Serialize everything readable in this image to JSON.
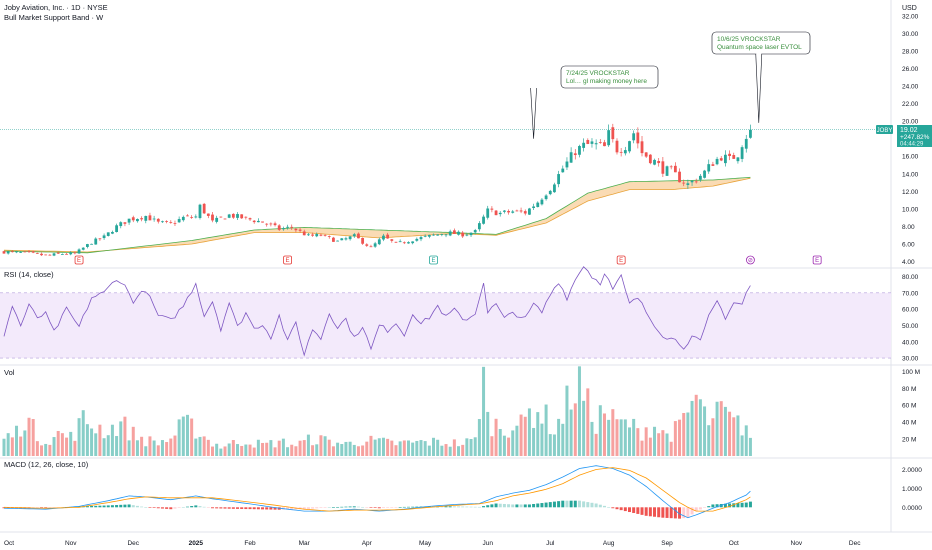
{
  "header": {
    "title": "Joby Aviation, Inc. · 1D · NYSE",
    "indicator": "Bull Market Support Band · W",
    "currency": "USD"
  },
  "price_tag": {
    "symbol": "JOBY",
    "price": "19.02",
    "change": "+247.82%",
    "countdown": "04:44:29"
  },
  "annotations": [
    {
      "line1": "7/24/25 VROCKSTAR",
      "line2": "Lol… gl making money here",
      "x": 127,
      "y": 18.0
    },
    {
      "line1": "10/6/25 VROCKSTAR",
      "line2": "Quantum space laser EVTOL",
      "x": 181,
      "y": 19.8
    }
  ],
  "panes": {
    "rsi": {
      "label": "RSI (14, close)"
    },
    "vol": {
      "label": "Vol"
    },
    "macd": {
      "label": "MACD (12, 26, close, 10)"
    }
  },
  "events": [
    {
      "letter": "E",
      "x": 18,
      "kind": "earnings"
    },
    {
      "letter": "E",
      "x": 68,
      "kind": "earnings"
    },
    {
      "letter": "E",
      "x": 103,
      "kind": "earnings"
    },
    {
      "letter": "E",
      "x": 148,
      "kind": "earnings"
    },
    {
      "letter": "⊘",
      "x": 179,
      "kind": "event"
    },
    {
      "letter": "E",
      "x": 195,
      "kind": "earnings-future"
    }
  ],
  "colors": {
    "up": "#26a69a",
    "down": "#ef5350",
    "band_fill": "#f9d5a7",
    "band_line_slow": "#e8a33a",
    "band_line_fast": "#4caf50",
    "rsi_line": "#7e57c2",
    "rsi_band": "#f3eafb",
    "macd_line": "#2196f3",
    "signal_line": "#ff9800",
    "price_line": "#26a69a",
    "event_earnings": "#e53935",
    "event_green": "#26a69a",
    "event_purple": "#9c27b0"
  },
  "chart_data": {
    "type": "candlestick",
    "x_axis": {
      "labels": [
        "Oct",
        "Nov",
        "Dec",
        "2025",
        "Feb",
        "Mar",
        "Apr",
        "May",
        "Jun",
        "Jul",
        "Aug",
        "Sep",
        "Oct",
        "Nov",
        "Dec"
      ],
      "label_x": [
        0,
        16,
        31,
        46,
        59,
        72,
        87,
        101,
        116,
        131,
        145,
        159,
        175,
        190,
        204
      ]
    },
    "price_axis": {
      "ticks": [
        4,
        6,
        8,
        10,
        12,
        14,
        16,
        18,
        20,
        22,
        24,
        26,
        28,
        30,
        32
      ],
      "range": [
        3.5,
        32.2
      ]
    },
    "rsi_axis": {
      "ticks": [
        30,
        40,
        50,
        60,
        70,
        80
      ],
      "range": [
        27,
        84
      ],
      "band": [
        30,
        70
      ]
    },
    "vol_axis": {
      "ticks": [
        "20 M",
        "40 M",
        "60 M",
        "80 M",
        "100 M"
      ],
      "tick_values": [
        20,
        40,
        60,
        80,
        100
      ],
      "range": [
        0,
        104
      ]
    },
    "macd_axis": {
      "ticks": [
        "0.0000",
        "1.0000",
        "2.0000"
      ],
      "tick_values": [
        0,
        1,
        2
      ],
      "range": [
        -1.2,
        2.5
      ]
    },
    "anchors": {
      "close": [
        [
          0,
          5.1
        ],
        [
          5,
          5.0
        ],
        [
          10,
          4.7
        ],
        [
          14,
          4.9
        ],
        [
          17,
          4.9
        ],
        [
          21,
          6.2
        ],
        [
          24,
          6.8
        ],
        [
          27,
          8.0
        ],
        [
          30,
          8.8
        ],
        [
          34,
          9.2
        ],
        [
          37,
          8.4
        ],
        [
          40,
          8.3
        ],
        [
          43,
          9.0
        ],
        [
          46,
          9.1
        ],
        [
          47,
          10.3
        ],
        [
          50,
          8.5
        ],
        [
          54,
          9.3
        ],
        [
          58,
          8.9
        ],
        [
          62,
          8.5
        ],
        [
          66,
          7.7
        ],
        [
          69,
          7.9
        ],
        [
          73,
          6.9
        ],
        [
          76,
          7.0
        ],
        [
          80,
          6.3
        ],
        [
          84,
          6.9
        ],
        [
          87,
          5.9
        ],
        [
          88,
          5.6
        ],
        [
          91,
          6.8
        ],
        [
          94,
          6.0
        ],
        [
          98,
          6.5
        ],
        [
          102,
          6.9
        ],
        [
          106,
          7.3
        ],
        [
          110,
          7.1
        ],
        [
          113,
          7.4
        ],
        [
          116,
          9.8
        ],
        [
          119,
          9.5
        ],
        [
          122,
          9.7
        ],
        [
          125,
          9.6
        ],
        [
          128,
          10.8
        ],
        [
          131,
          12.4
        ],
        [
          134,
          14.6
        ],
        [
          137,
          16.6
        ],
        [
          139,
          17.2
        ],
        [
          141,
          17.4
        ],
        [
          144,
          17.0
        ],
        [
          145,
          18.5
        ],
        [
          147,
          16.8
        ],
        [
          149,
          17.2
        ],
        [
          151,
          18.7
        ],
        [
          153,
          16.4
        ],
        [
          156,
          15.4
        ],
        [
          158,
          14.5
        ],
        [
          160,
          14.3
        ],
        [
          162,
          13.4
        ],
        [
          164,
          12.8
        ],
        [
          166,
          13.4
        ],
        [
          168,
          14.2
        ],
        [
          170,
          15.3
        ],
        [
          172,
          16.0
        ],
        [
          174,
          15.6
        ],
        [
          176,
          16.3
        ],
        [
          177,
          17.5
        ],
        [
          178,
          18.3
        ],
        [
          179,
          19.02
        ]
      ],
      "band_slow": [
        [
          0,
          5.3
        ],
        [
          20,
          5.1
        ],
        [
          45,
          6.0
        ],
        [
          60,
          7.3
        ],
        [
          72,
          7.3
        ],
        [
          90,
          6.7
        ],
        [
          108,
          7.2
        ],
        [
          118,
          7.0
        ],
        [
          130,
          8.4
        ],
        [
          140,
          10.9
        ],
        [
          150,
          12.2
        ],
        [
          160,
          12.2
        ],
        [
          170,
          12.6
        ],
        [
          179,
          13.5
        ]
      ],
      "band_fast": [
        [
          0,
          5.2
        ],
        [
          20,
          5.0
        ],
        [
          45,
          6.4
        ],
        [
          60,
          7.6
        ],
        [
          72,
          7.9
        ],
        [
          90,
          7.6
        ],
        [
          108,
          7.3
        ],
        [
          118,
          7.1
        ],
        [
          130,
          8.9
        ],
        [
          140,
          11.8
        ],
        [
          150,
          13.1
        ],
        [
          160,
          13.2
        ],
        [
          170,
          13.3
        ],
        [
          179,
          13.6
        ]
      ],
      "rsi": [
        [
          0,
          44
        ],
        [
          2,
          62
        ],
        [
          4,
          50
        ],
        [
          6,
          62
        ],
        [
          8,
          55
        ],
        [
          10,
          57
        ],
        [
          12,
          46
        ],
        [
          15,
          60
        ],
        [
          18,
          49
        ],
        [
          21,
          67
        ],
        [
          24,
          70
        ],
        [
          27,
          79
        ],
        [
          29,
          74
        ],
        [
          31,
          65
        ],
        [
          34,
          72
        ],
        [
          37,
          56
        ],
        [
          40,
          53
        ],
        [
          43,
          62
        ],
        [
          46,
          76
        ],
        [
          48,
          56
        ],
        [
          50,
          65
        ],
        [
          52,
          48
        ],
        [
          54,
          64
        ],
        [
          56,
          49
        ],
        [
          58,
          58
        ],
        [
          60,
          48
        ],
        [
          62,
          51
        ],
        [
          64,
          43
        ],
        [
          66,
          56
        ],
        [
          68,
          40
        ],
        [
          70,
          52
        ],
        [
          72,
          32
        ],
        [
          74,
          48
        ],
        [
          76,
          42
        ],
        [
          78,
          58
        ],
        [
          80,
          49
        ],
        [
          82,
          54
        ],
        [
          84,
          42
        ],
        [
          86,
          50
        ],
        [
          88,
          35
        ],
        [
          90,
          50
        ],
        [
          92,
          47
        ],
        [
          94,
          52
        ],
        [
          96,
          44
        ],
        [
          98,
          58
        ],
        [
          100,
          51
        ],
        [
          102,
          55
        ],
        [
          104,
          62
        ],
        [
          106,
          55
        ],
        [
          108,
          60
        ],
        [
          110,
          53
        ],
        [
          113,
          57
        ],
        [
          115,
          77
        ],
        [
          116,
          58
        ],
        [
          118,
          63
        ],
        [
          120,
          54
        ],
        [
          122,
          58
        ],
        [
          125,
          54
        ],
        [
          127,
          63
        ],
        [
          129,
          58
        ],
        [
          131,
          69
        ],
        [
          133,
          77
        ],
        [
          135,
          67
        ],
        [
          137,
          78
        ],
        [
          139,
          87
        ],
        [
          141,
          80
        ],
        [
          143,
          76
        ],
        [
          144,
          83
        ],
        [
          146,
          72
        ],
        [
          148,
          80
        ],
        [
          150,
          63
        ],
        [
          152,
          67
        ],
        [
          155,
          54
        ],
        [
          158,
          44
        ],
        [
          161,
          41
        ],
        [
          163,
          37
        ],
        [
          165,
          43
        ],
        [
          167,
          40
        ],
        [
          169,
          55
        ],
        [
          171,
          65
        ],
        [
          173,
          55
        ],
        [
          175,
          64
        ],
        [
          177,
          63
        ],
        [
          178,
          70
        ],
        [
          179,
          74
        ]
      ],
      "volume": [
        [
          0,
          22
        ],
        [
          3,
          30
        ],
        [
          5,
          52
        ],
        [
          8,
          25
        ],
        [
          10,
          20
        ],
        [
          13,
          28
        ],
        [
          16,
          24
        ],
        [
          19,
          45
        ],
        [
          22,
          38
        ],
        [
          25,
          32
        ],
        [
          28,
          42
        ],
        [
          31,
          28
        ],
        [
          34,
          20
        ],
        [
          37,
          17
        ],
        [
          40,
          22
        ],
        [
          43,
          40
        ],
        [
          46,
          35
        ],
        [
          49,
          20
        ],
        [
          52,
          12
        ],
        [
          55,
          16
        ],
        [
          58,
          20
        ],
        [
          62,
          14
        ],
        [
          66,
          18
        ],
        [
          70,
          14
        ],
        [
          74,
          22
        ],
        [
          78,
          19
        ],
        [
          82,
          15
        ],
        [
          86,
          20
        ],
        [
          90,
          18
        ],
        [
          94,
          16
        ],
        [
          98,
          17
        ],
        [
          102,
          18
        ],
        [
          106,
          17
        ],
        [
          110,
          16
        ],
        [
          113,
          20
        ],
        [
          114,
          70
        ],
        [
          115,
          100
        ],
        [
          116,
          45
        ],
        [
          118,
          40
        ],
        [
          120,
          35
        ],
        [
          122,
          42
        ],
        [
          124,
          38
        ],
        [
          126,
          55
        ],
        [
          128,
          60
        ],
        [
          130,
          48
        ],
        [
          132,
          35
        ],
        [
          134,
          50
        ],
        [
          136,
          82
        ],
        [
          138,
          90
        ],
        [
          140,
          62
        ],
        [
          142,
          45
        ],
        [
          144,
          58
        ],
        [
          146,
          45
        ],
        [
          148,
          40
        ],
        [
          150,
          42
        ],
        [
          152,
          30
        ],
        [
          154,
          36
        ],
        [
          156,
          38
        ],
        [
          158,
          28
        ],
        [
          160,
          30
        ],
        [
          162,
          35
        ],
        [
          164,
          55
        ],
        [
          166,
          76
        ],
        [
          168,
          50
        ],
        [
          170,
          42
        ],
        [
          172,
          60
        ],
        [
          174,
          45
        ],
        [
          176,
          40
        ],
        [
          178,
          38
        ],
        [
          179,
          25
        ]
      ],
      "macd": [
        [
          0,
          -0.05
        ],
        [
          10,
          -0.1
        ],
        [
          18,
          0.05
        ],
        [
          25,
          0.35
        ],
        [
          30,
          0.6
        ],
        [
          34,
          0.55
        ],
        [
          40,
          0.4
        ],
        [
          46,
          0.6
        ],
        [
          50,
          0.45
        ],
        [
          55,
          0.3
        ],
        [
          60,
          0.15
        ],
        [
          66,
          -0.05
        ],
        [
          72,
          -0.2
        ],
        [
          78,
          -0.2
        ],
        [
          84,
          -0.1
        ],
        [
          90,
          -0.2
        ],
        [
          96,
          -0.1
        ],
        [
          102,
          0.05
        ],
        [
          108,
          0.15
        ],
        [
          114,
          0.2
        ],
        [
          118,
          0.55
        ],
        [
          122,
          0.75
        ],
        [
          126,
          0.9
        ],
        [
          130,
          1.2
        ],
        [
          134,
          1.6
        ],
        [
          138,
          2.05
        ],
        [
          142,
          2.2
        ],
        [
          146,
          2.05
        ],
        [
          150,
          1.7
        ],
        [
          154,
          1.1
        ],
        [
          158,
          0.35
        ],
        [
          162,
          -0.35
        ],
        [
          164,
          -0.55
        ],
        [
          166,
          -0.4
        ],
        [
          170,
          -0.05
        ],
        [
          174,
          0.25
        ],
        [
          178,
          0.65
        ],
        [
          179,
          0.85
        ]
      ],
      "signal": [
        [
          0,
          0.0
        ],
        [
          10,
          -0.05
        ],
        [
          18,
          0.0
        ],
        [
          25,
          0.25
        ],
        [
          30,
          0.45
        ],
        [
          34,
          0.55
        ],
        [
          40,
          0.5
        ],
        [
          46,
          0.5
        ],
        [
          50,
          0.5
        ],
        [
          55,
          0.38
        ],
        [
          60,
          0.25
        ],
        [
          66,
          0.08
        ],
        [
          72,
          -0.1
        ],
        [
          78,
          -0.2
        ],
        [
          84,
          -0.15
        ],
        [
          90,
          -0.15
        ],
        [
          96,
          -0.12
        ],
        [
          102,
          0.0
        ],
        [
          108,
          0.1
        ],
        [
          114,
          0.18
        ],
        [
          118,
          0.35
        ],
        [
          122,
          0.6
        ],
        [
          126,
          0.75
        ],
        [
          130,
          0.95
        ],
        [
          134,
          1.25
        ],
        [
          138,
          1.7
        ],
        [
          142,
          2.0
        ],
        [
          146,
          2.1
        ],
        [
          150,
          1.95
        ],
        [
          154,
          1.55
        ],
        [
          158,
          0.9
        ],
        [
          162,
          0.25
        ],
        [
          164,
          0.0
        ],
        [
          166,
          -0.2
        ],
        [
          170,
          -0.2
        ],
        [
          174,
          0.05
        ],
        [
          178,
          0.4
        ],
        [
          179,
          0.55
        ]
      ]
    }
  }
}
